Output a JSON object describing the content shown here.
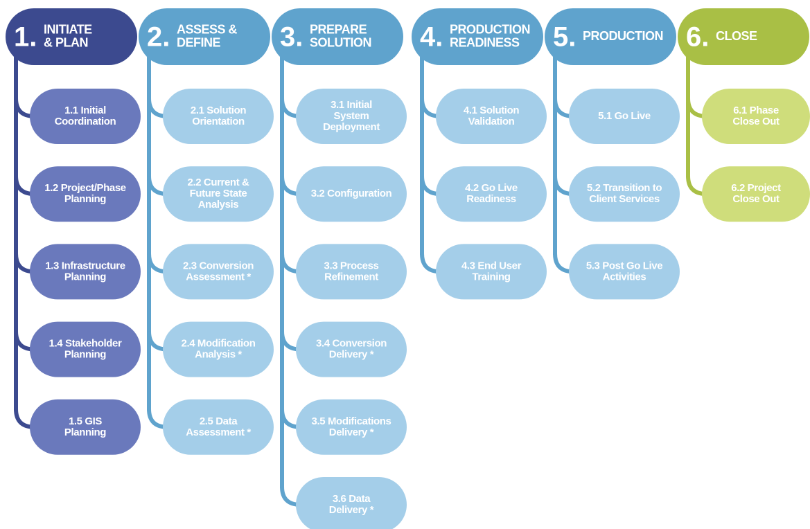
{
  "phases": [
    {
      "number": "1.",
      "title": [
        "INITIATE",
        "& PLAN"
      ],
      "steps": [
        [
          "1.1 Initial",
          "Coordination"
        ],
        [
          "1.2 Project/Phase",
          "Planning"
        ],
        [
          "1.3 Infrastructure",
          "Planning"
        ],
        [
          "1.4 Stakeholder",
          "Planning"
        ],
        [
          "1.5 GIS",
          "Planning"
        ]
      ]
    },
    {
      "number": "2.",
      "title": [
        "ASSESS &",
        "DEFINE"
      ],
      "steps": [
        [
          "2.1 Solution",
          "Orientation"
        ],
        [
          "2.2 Current &",
          "Future State",
          "Analysis"
        ],
        [
          "2.3 Conversion",
          "Assessment *"
        ],
        [
          "2.4 Modification",
          "Analysis *"
        ],
        [
          "2.5 Data",
          "Assessment *"
        ]
      ]
    },
    {
      "number": "3.",
      "title": [
        "PREPARE",
        "SOLUTION"
      ],
      "steps": [
        [
          "3.1 Initial",
          "System",
          "Deployment"
        ],
        [
          "3.2 Configuration"
        ],
        [
          "3.3 Process",
          "Refinement"
        ],
        [
          "3.4 Conversion",
          "Delivery *"
        ],
        [
          "3.5 Modifications",
          "Delivery *"
        ],
        [
          "3.6 Data",
          "Delivery *"
        ]
      ]
    },
    {
      "number": "4.",
      "title": [
        "PRODUCTION",
        "READINESS"
      ],
      "steps": [
        [
          "4.1 Solution",
          "Validation"
        ],
        [
          "4.2 Go Live",
          "Readiness"
        ],
        [
          "4.3 End User",
          "Training"
        ]
      ]
    },
    {
      "number": "5.",
      "title": [
        "PRODUCTION"
      ],
      "steps": [
        [
          "5.1 Go Live"
        ],
        [
          "5.2 Transition to",
          "Client Services"
        ],
        [
          "5.3 Post Go Live",
          "Activities"
        ]
      ]
    },
    {
      "number": "6.",
      "title": [
        "CLOSE"
      ],
      "steps": [
        [
          "6.1 Phase",
          "Close Out"
        ],
        [
          "6.2 Project",
          "Close Out"
        ]
      ]
    }
  ]
}
